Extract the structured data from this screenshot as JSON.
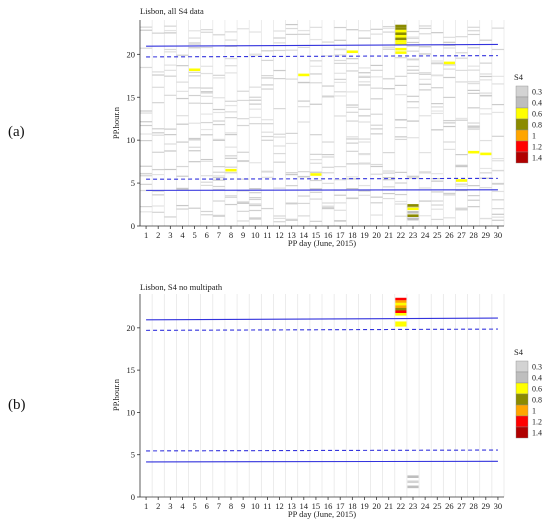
{
  "chart_data": [
    {
      "type": "heatmap",
      "panel_label": "(a)",
      "title": "Lisbon, all S4 data",
      "xlabel": "PP day (June, 2015)",
      "ylabel": "PP.hour.n",
      "x_ticks": [
        "1",
        "2",
        "3",
        "4",
        "5",
        "6",
        "7",
        "8",
        "9",
        "10",
        "11",
        "12",
        "13",
        "14",
        "15",
        "16",
        "17",
        "18",
        "19",
        "20",
        "21",
        "22",
        "23",
        "24",
        "25",
        "26",
        "27",
        "28",
        "29",
        "30"
      ],
      "y_ticks": [
        "0",
        "5",
        "10",
        "15",
        "20"
      ],
      "xlim": [
        0.5,
        30.5
      ],
      "ylim": [
        0,
        24
      ],
      "grid": "vertical",
      "legend": {
        "title": "S4",
        "placement": "right",
        "entries": [
          {
            "label": "0.3",
            "color": "#d3d3d3"
          },
          {
            "label": "0.4",
            "color": "#bebebe"
          },
          {
            "label": "0.6",
            "color": "#ffff00"
          },
          {
            "label": "0.8",
            "color": "#8b8b00"
          },
          {
            "label": "1",
            "color": "#ffa500"
          },
          {
            "label": "1.2",
            "color": "#ff0000"
          },
          {
            "label": "1.4",
            "color": "#b00000"
          }
        ]
      },
      "series": [
        {
          "name": "sunset",
          "style": "solid",
          "color": "#3333dd",
          "x": [
            1,
            30
          ],
          "y": [
            20.95,
            21.15
          ]
        },
        {
          "name": "sunset twilight",
          "style": "dashed",
          "color": "#3333dd",
          "x": [
            1,
            30
          ],
          "y": [
            19.7,
            19.85
          ]
        },
        {
          "name": "sunrise twilight",
          "style": "dashed",
          "color": "#3333dd",
          "x": [
            1,
            30
          ],
          "y": [
            5.45,
            5.55
          ]
        },
        {
          "name": "sunrise",
          "style": "solid",
          "color": "#3333dd",
          "x": [
            1,
            30
          ],
          "y": [
            4.15,
            4.22
          ]
        }
      ],
      "s4_cells": [
        {
          "day": 22,
          "hour": 23.3,
          "s4": 0.8
        },
        {
          "day": 22,
          "hour": 23.0,
          "s4": 0.8
        },
        {
          "day": 22,
          "hour": 22.7,
          "s4": 0.6
        },
        {
          "day": 22,
          "hour": 22.4,
          "s4": 0.8
        },
        {
          "day": 22,
          "hour": 22.1,
          "s4": 0.6
        },
        {
          "day": 22,
          "hour": 21.8,
          "s4": 0.8
        },
        {
          "day": 22,
          "hour": 21.5,
          "s4": 0.6
        },
        {
          "day": 22,
          "hour": 21.2,
          "s4": 0.6
        },
        {
          "day": 22,
          "hour": 20.6,
          "s4": 0.6
        },
        {
          "day": 22,
          "hour": 20.2,
          "s4": 0.6
        },
        {
          "day": 23,
          "hour": 2.4,
          "s4": 0.8
        },
        {
          "day": 23,
          "hour": 2.0,
          "s4": 0.6
        },
        {
          "day": 23,
          "hour": 1.6,
          "s4": 0.4
        },
        {
          "day": 23,
          "hour": 1.2,
          "s4": 0.8
        },
        {
          "day": 23,
          "hour": 0.8,
          "s4": 0.4
        },
        {
          "day": 5,
          "hour": 18.2,
          "s4": 0.6
        },
        {
          "day": 14,
          "hour": 17.6,
          "s4": 0.6
        },
        {
          "day": 18,
          "hour": 20.3,
          "s4": 0.6
        },
        {
          "day": 26,
          "hour": 19.0,
          "s4": 0.6
        },
        {
          "day": 8,
          "hour": 6.5,
          "s4": 0.6
        },
        {
          "day": 15,
          "hour": 6.0,
          "s4": 0.6
        },
        {
          "day": 27,
          "hour": 5.3,
          "s4": 0.6
        },
        {
          "day": 28,
          "hour": 8.6,
          "s4": 0.6
        },
        {
          "day": 29,
          "hour": 8.4,
          "s4": 0.6
        }
      ]
    },
    {
      "type": "heatmap",
      "panel_label": "(b)",
      "title": "Lisbon, S4 no multipath",
      "xlabel": "PP day (June, 2015)",
      "ylabel": "PP.hour.n",
      "x_ticks": [
        "1",
        "2",
        "3",
        "4",
        "5",
        "6",
        "7",
        "8",
        "9",
        "10",
        "11",
        "12",
        "13",
        "14",
        "15",
        "16",
        "17",
        "18",
        "19",
        "20",
        "21",
        "22",
        "23",
        "24",
        "25",
        "26",
        "27",
        "28",
        "29",
        "30"
      ],
      "y_ticks": [
        "0",
        "5",
        "10",
        "15",
        "20"
      ],
      "xlim": [
        0.5,
        30.5
      ],
      "ylim": [
        0,
        24
      ],
      "grid": "vertical",
      "legend": {
        "title": "S4",
        "placement": "right",
        "entries": [
          {
            "label": "0.3",
            "color": "#d3d3d3"
          },
          {
            "label": "0.4",
            "color": "#bebebe"
          },
          {
            "label": "0.6",
            "color": "#ffff00"
          },
          {
            "label": "0.8",
            "color": "#8b8b00"
          },
          {
            "label": "1",
            "color": "#ffa500"
          },
          {
            "label": "1.2",
            "color": "#ff0000"
          },
          {
            "label": "1.4",
            "color": "#b00000"
          }
        ]
      },
      "series": [
        {
          "name": "sunset",
          "style": "solid",
          "color": "#3333dd",
          "x": [
            1,
            30
          ],
          "y": [
            20.95,
            21.15
          ]
        },
        {
          "name": "sunset twilight",
          "style": "dashed",
          "color": "#3333dd",
          "x": [
            1,
            30
          ],
          "y": [
            19.7,
            19.85
          ]
        },
        {
          "name": "sunrise twilight",
          "style": "dashed",
          "color": "#3333dd",
          "x": [
            1,
            30
          ],
          "y": [
            5.45,
            5.55
          ]
        },
        {
          "name": "sunrise",
          "style": "solid",
          "color": "#3333dd",
          "x": [
            1,
            30
          ],
          "y": [
            4.15,
            4.22
          ]
        }
      ],
      "s4_cells": [
        {
          "day": 22,
          "hour": 23.4,
          "s4": 1.2
        },
        {
          "day": 22,
          "hour": 23.1,
          "s4": 1.0
        },
        {
          "day": 22,
          "hour": 22.8,
          "s4": 0.6
        },
        {
          "day": 22,
          "hour": 22.5,
          "s4": 1.0
        },
        {
          "day": 22,
          "hour": 22.2,
          "s4": 0.8
        },
        {
          "day": 22,
          "hour": 21.9,
          "s4": 1.2
        },
        {
          "day": 22,
          "hour": 21.6,
          "s4": 0.6
        },
        {
          "day": 22,
          "hour": 20.6,
          "s4": 0.6
        },
        {
          "day": 22,
          "hour": 20.3,
          "s4": 0.6
        },
        {
          "day": 23,
          "hour": 2.4,
          "s4": 0.4
        },
        {
          "day": 23,
          "hour": 1.8,
          "s4": 0.3
        },
        {
          "day": 23,
          "hour": 1.2,
          "s4": 0.4
        }
      ]
    }
  ]
}
